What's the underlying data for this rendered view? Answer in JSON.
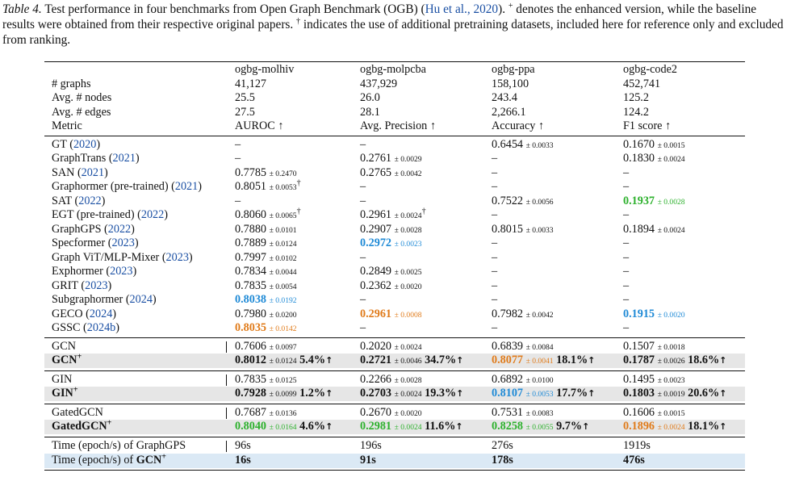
{
  "caption": {
    "label": "Table 4.",
    "text1": "Test performance in four benchmarks from Open Graph Benchmark (OGB) (",
    "cite": "Hu et al., 2020",
    "text2": "). ",
    "plus": "+",
    "text3": " denotes the enhanced version, while the baseline results were obtained from their respective original papers. ",
    "dagger": "†",
    "text4": " indicates the use of additional pretraining datasets, included here for reference only and excluded from ranking."
  },
  "header": {
    "datasets": [
      "ogbg-molhiv",
      "ogbg-molpcba",
      "ogbg-ppa",
      "ogbg-code2"
    ],
    "stats": [
      {
        "label": "# graphs",
        "values": [
          "41,127",
          "437,929",
          "158,100",
          "452,741"
        ]
      },
      {
        "label": "Avg. # nodes",
        "values": [
          "25.5",
          "26.0",
          "243.4",
          "125.2"
        ]
      },
      {
        "label": "Avg. # edges",
        "values": [
          "27.5",
          "28.1",
          "2,266.1",
          "124.2"
        ]
      },
      {
        "label": "Metric",
        "values": [
          "AUROC ↑",
          "Avg. Precision ↑",
          "Accuracy ↑",
          "F1 score ↑"
        ]
      }
    ]
  },
  "baselines": [
    {
      "name": "GT",
      "year": "2020",
      "cells": [
        {
          "v": "–"
        },
        {
          "v": "–"
        },
        {
          "v": "0.6454",
          "s": "± 0.0033"
        },
        {
          "v": "0.1670",
          "s": "± 0.0015"
        }
      ]
    },
    {
      "name": "GraphTrans",
      "year": "2021",
      "cells": [
        {
          "v": "–"
        },
        {
          "v": "0.2761",
          "s": "± 0.0029"
        },
        {
          "v": "–"
        },
        {
          "v": "0.1830",
          "s": "± 0.0024"
        }
      ]
    },
    {
      "name": "SAN",
      "year": "2021",
      "cells": [
        {
          "v": "0.7785",
          "s": "± 0.2470"
        },
        {
          "v": "0.2765",
          "s": "± 0.0042"
        },
        {
          "v": "–"
        },
        {
          "v": "–"
        }
      ]
    },
    {
      "name": "Graphormer (pre-trained)",
      "year": "2021",
      "cells": [
        {
          "v": "0.8051",
          "s": "± 0.0053",
          "d": "†"
        },
        {
          "v": "–"
        },
        {
          "v": "–"
        },
        {
          "v": "–"
        }
      ]
    },
    {
      "name": "SAT",
      "year": "2022",
      "cells": [
        {
          "v": "–"
        },
        {
          "v": "–"
        },
        {
          "v": "0.7522",
          "s": "± 0.0056"
        },
        {
          "v": "0.1937",
          "s": "± 0.0028",
          "c": "green"
        }
      ]
    },
    {
      "name": "EGT (pre-trained)",
      "year": "2022",
      "cells": [
        {
          "v": "0.8060",
          "s": "± 0.0065",
          "d": "†"
        },
        {
          "v": "0.2961",
          "s": "± 0.0024",
          "d": "†"
        },
        {
          "v": "–"
        },
        {
          "v": "–"
        }
      ]
    },
    {
      "name": "GraphGPS",
      "year": "2022",
      "cells": [
        {
          "v": "0.7880",
          "s": "± 0.0101"
        },
        {
          "v": "0.2907",
          "s": "± 0.0028"
        },
        {
          "v": "0.8015",
          "s": "± 0.0033"
        },
        {
          "v": "0.1894",
          "s": "± 0.0024"
        }
      ]
    },
    {
      "name": "Specformer",
      "year": "2023",
      "cells": [
        {
          "v": "0.7889",
          "s": "± 0.0124"
        },
        {
          "v": "0.2972",
          "s": "± 0.0023",
          "c": "blue-t"
        },
        {
          "v": "–"
        },
        {
          "v": "–"
        }
      ]
    },
    {
      "name": "Graph ViT/MLP-Mixer",
      "year": "2023",
      "cells": [
        {
          "v": "0.7997",
          "s": "± 0.0102"
        },
        {
          "v": "–"
        },
        {
          "v": "–"
        },
        {
          "v": "–"
        }
      ]
    },
    {
      "name": "Exphormer",
      "year": "2023",
      "cells": [
        {
          "v": "0.7834",
          "s": "± 0.0044"
        },
        {
          "v": "0.2849",
          "s": "± 0.0025"
        },
        {
          "v": "–"
        },
        {
          "v": "–"
        }
      ]
    },
    {
      "name": "GRIT",
      "year": "2023",
      "cells": [
        {
          "v": "0.7835",
          "s": "± 0.0054"
        },
        {
          "v": "0.2362",
          "s": "± 0.0020"
        },
        {
          "v": "–"
        },
        {
          "v": "–"
        }
      ]
    },
    {
      "name": "Subgraphormer",
      "year": "2024",
      "cells": [
        {
          "v": "0.8038",
          "s": "± 0.0192",
          "c": "blue-t"
        },
        {
          "v": "–"
        },
        {
          "v": "–"
        },
        {
          "v": "–"
        }
      ]
    },
    {
      "name": "GECO",
      "year": "2024",
      "cells": [
        {
          "v": "0.7980",
          "s": "± 0.0200"
        },
        {
          "v": "0.2961",
          "s": "± 0.0008",
          "c": "orange"
        },
        {
          "v": "0.7982",
          "s": "± 0.0042"
        },
        {
          "v": "0.1915",
          "s": "± 0.0020",
          "c": "blue-t"
        }
      ]
    },
    {
      "name": "GSSC",
      "year": "2024b",
      "cells": [
        {
          "v": "0.8035",
          "s": "± 0.0142",
          "c": "orange"
        },
        {
          "v": "–"
        },
        {
          "v": "–"
        },
        {
          "v": "–"
        }
      ]
    }
  ],
  "groups": [
    {
      "base": {
        "name": "GCN",
        "cells": [
          {
            "v": "0.7606",
            "s": "± 0.0097"
          },
          {
            "v": "0.2020",
            "s": "± 0.0024"
          },
          {
            "v": "0.6839",
            "s": "± 0.0084"
          },
          {
            "v": "0.1507",
            "s": "± 0.0018"
          }
        ]
      },
      "enh": {
        "name": "GCN",
        "cells": [
          {
            "v": "0.8012",
            "s": "± 0.0124",
            "g": "5.4%"
          },
          {
            "v": "0.2721",
            "s": "± 0.0046",
            "g": "34.7%"
          },
          {
            "v": "0.8077",
            "s": "± 0.0041",
            "g": "18.1%",
            "c": "orange"
          },
          {
            "v": "0.1787",
            "s": "± 0.0026",
            "g": "18.6%"
          }
        ]
      }
    },
    {
      "base": {
        "name": "GIN",
        "cells": [
          {
            "v": "0.7835",
            "s": "± 0.0125"
          },
          {
            "v": "0.2266",
            "s": "± 0.0028"
          },
          {
            "v": "0.6892",
            "s": "± 0.0100"
          },
          {
            "v": "0.1495",
            "s": "± 0.0023"
          }
        ]
      },
      "enh": {
        "name": "GIN",
        "cells": [
          {
            "v": "0.7928",
            "s": "± 0.0099",
            "g": "1.2%"
          },
          {
            "v": "0.2703",
            "s": "± 0.0024",
            "g": "19.3%"
          },
          {
            "v": "0.8107",
            "s": "± 0.0053",
            "g": "17.7%",
            "c": "blue-t"
          },
          {
            "v": "0.1803",
            "s": "± 0.0019",
            "g": "20.6%"
          }
        ]
      }
    },
    {
      "base": {
        "name": "GatedGCN",
        "cells": [
          {
            "v": "0.7687",
            "s": "± 0.0136"
          },
          {
            "v": "0.2670",
            "s": "± 0.0020"
          },
          {
            "v": "0.7531",
            "s": "± 0.0083"
          },
          {
            "v": "0.1606",
            "s": "± 0.0015"
          }
        ]
      },
      "enh": {
        "name": "GatedGCN",
        "cells": [
          {
            "v": "0.8040",
            "s": "± 0.0164",
            "g": "4.6%",
            "c": "green"
          },
          {
            "v": "0.2981",
            "s": "± 0.0024",
            "g": "11.6%",
            "c": "green"
          },
          {
            "v": "0.8258",
            "s": "± 0.0055",
            "g": "9.7%",
            "c": "green"
          },
          {
            "v": "0.1896",
            "s": "± 0.0024",
            "g": "18.1%",
            "c": "orange"
          }
        ]
      }
    }
  ],
  "plus_mark": "+",
  "up_arrow": "↑",
  "timing": [
    {
      "label": "Time (epoch/s) of GraphGPS",
      "values": [
        "96s",
        "196s",
        "276s",
        "1919s"
      ]
    },
    {
      "label_prefix": "Time (epoch/s) of ",
      "label_model": "GCN",
      "values": [
        "16s",
        "91s",
        "178s",
        "476s"
      ]
    }
  ],
  "colors": {
    "first": "#2db12d",
    "second": "#e07b1a",
    "third": "#1f8ad6",
    "cite": "#1a4fa3",
    "shade": "#e6e6e6",
    "timing_shade": "#dbe9f5"
  }
}
